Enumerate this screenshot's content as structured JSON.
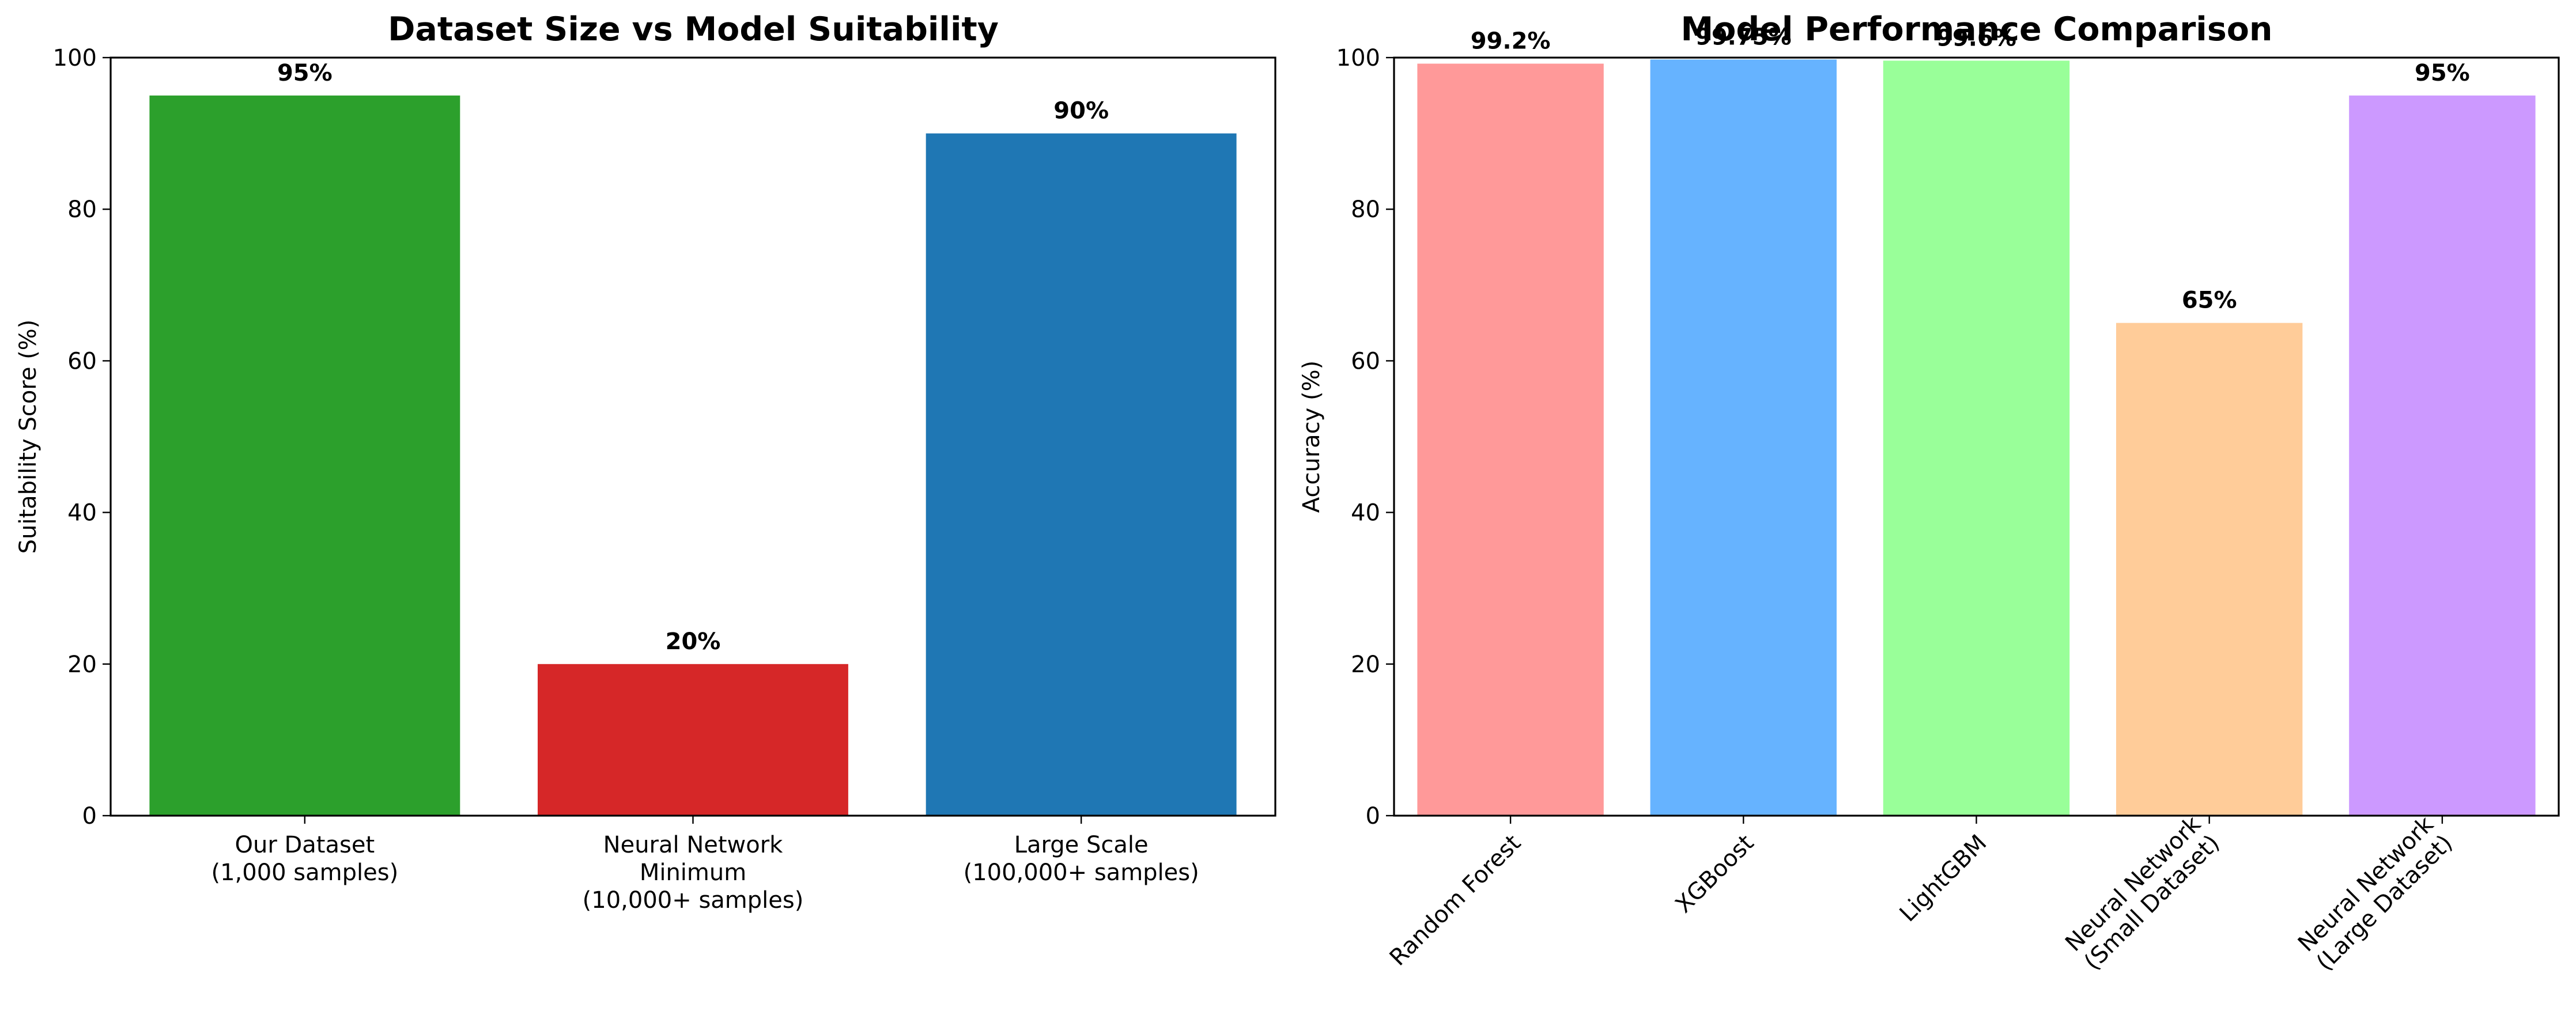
{
  "chart_data": [
    {
      "type": "bar",
      "title": "Dataset Size vs Model Suitability",
      "xlabel": "",
      "ylabel": "Suitability Score (%)",
      "ylim": [
        0,
        100
      ],
      "yticks": [
        "0",
        "20",
        "40",
        "60",
        "80",
        "100"
      ],
      "categories": [
        "Our Dataset\n(1,000 samples)",
        "Neural Network\nMinimum\n(10,000+ samples)",
        "Large Scale\n(100,000+ samples)"
      ],
      "values": [
        95,
        20,
        90
      ],
      "value_labels": [
        "95%",
        "20%",
        "90%"
      ],
      "colors": [
        "#2ca02c",
        "#d62728",
        "#1f77b4"
      ],
      "grid": false
    },
    {
      "type": "bar",
      "title": "Model Performance Comparison",
      "xlabel": "",
      "ylabel": "Accuracy (%)",
      "ylim": [
        0,
        100
      ],
      "yticks": [
        "0",
        "20",
        "40",
        "60",
        "80",
        "100"
      ],
      "categories": [
        "Random Forest",
        "XGBoost",
        "LightGBM",
        "Neural Network\n(Small Dataset)",
        "Neural Network\n(Large Dataset)"
      ],
      "values": [
        99.2,
        99.75,
        99.6,
        65,
        95
      ],
      "value_labels": [
        "99.2%",
        "99.75%",
        "99.6%",
        "65%",
        "95%"
      ],
      "colors": [
        "#ff9999",
        "#66b3ff",
        "#99ff99",
        "#ffcc99",
        "#cc99ff"
      ],
      "grid": false,
      "tick_rotation": 45
    }
  ]
}
